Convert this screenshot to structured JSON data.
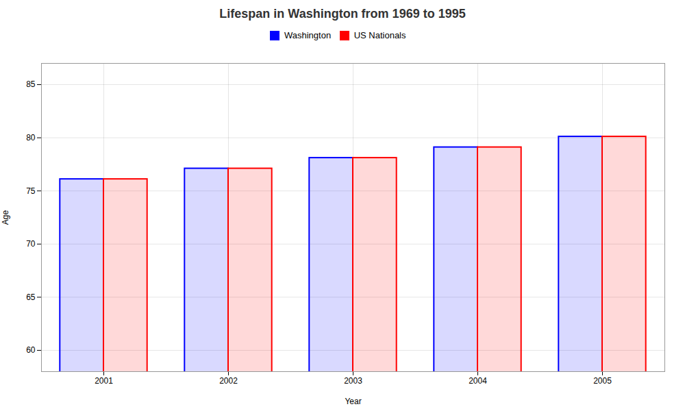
{
  "chart_data": {
    "type": "bar",
    "title": "Lifespan in Washington from 1969 to 1995",
    "xlabel": "Year",
    "ylabel": "Age",
    "categories": [
      "2001",
      "2002",
      "2003",
      "2004",
      "2005"
    ],
    "series": [
      {
        "name": "Washington",
        "color": "#0000ff",
        "values": [
          76.1,
          77.1,
          78.1,
          79.1,
          80.1
        ]
      },
      {
        "name": "US Nationals",
        "color": "#ff0000",
        "values": [
          76.1,
          77.1,
          78.1,
          79.1,
          80.1
        ]
      }
    ],
    "ylim": [
      58,
      87
    ],
    "yticks": [
      60,
      65,
      70,
      75,
      80,
      85
    ],
    "grid": true,
    "legend": "top"
  }
}
